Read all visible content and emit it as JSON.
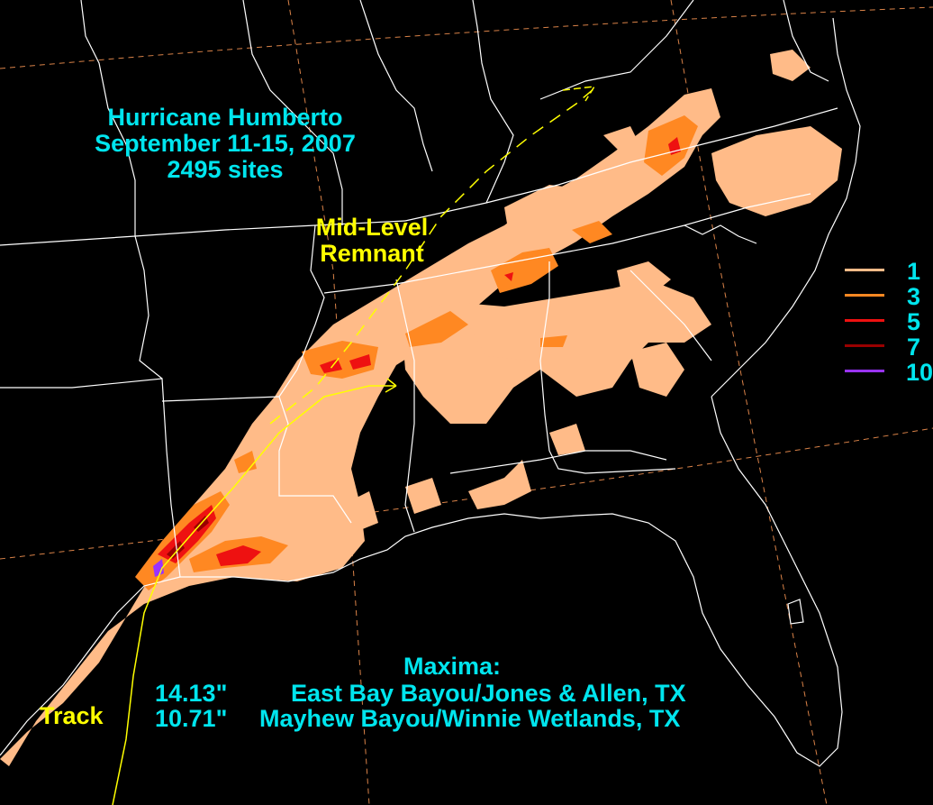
{
  "title": {
    "line1": "Hurricane Humberto",
    "line2": "September 11-15, 2007",
    "line3": "2495 sites"
  },
  "remnant_label": {
    "line1": "Mid-Level",
    "line2": "Remnant"
  },
  "track_label": "Track",
  "legend": [
    {
      "value": "1",
      "color": "#ffbb88"
    },
    {
      "value": "3",
      "color": "#ff8822"
    },
    {
      "value": "5",
      "color": "#ee1111"
    },
    {
      "value": "7",
      "color": "#990000"
    },
    {
      "value": "10",
      "color": "#9933ff"
    }
  ],
  "maxima": {
    "title": "Maxima:",
    "entries": [
      {
        "value": "14.13\"",
        "site": "East Bay Bayou/Jones & Allen, TX"
      },
      {
        "value": "10.71\"",
        "site": "Mayhew Bayou/Winnie Wetlands, TX"
      }
    ]
  },
  "colors": {
    "background": "#000000",
    "boundaries": "#ffffff",
    "graticule": "#ff9955",
    "track": "#ffff00",
    "text": "#00e5ee"
  }
}
